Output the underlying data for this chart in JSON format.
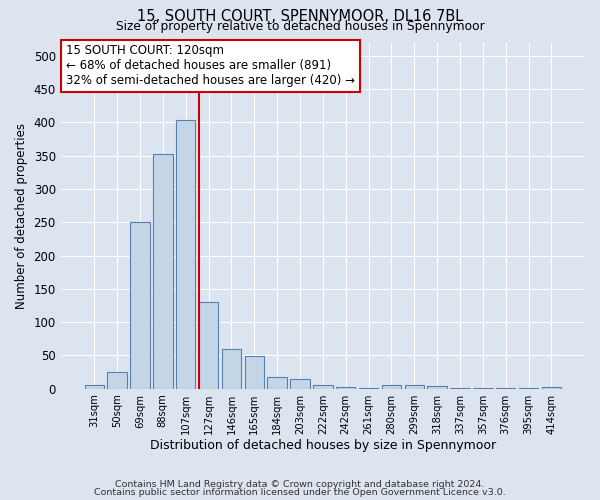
{
  "title": "15, SOUTH COURT, SPENNYMOOR, DL16 7BL",
  "subtitle": "Size of property relative to detached houses in Spennymoor",
  "xlabel": "Distribution of detached houses by size in Spennymoor",
  "ylabel": "Number of detached properties",
  "categories": [
    "31sqm",
    "50sqm",
    "69sqm",
    "88sqm",
    "107sqm",
    "127sqm",
    "146sqm",
    "165sqm",
    "184sqm",
    "203sqm",
    "222sqm",
    "242sqm",
    "261sqm",
    "280sqm",
    "299sqm",
    "318sqm",
    "337sqm",
    "357sqm",
    "376sqm",
    "395sqm",
    "414sqm"
  ],
  "values": [
    5,
    25,
    250,
    353,
    403,
    130,
    60,
    49,
    18,
    15,
    5,
    2,
    1,
    6,
    5,
    4,
    1,
    1,
    1,
    1,
    3
  ],
  "bar_color": "#c5d5e8",
  "bar_edge_color": "#5580b0",
  "vline_x_idx": 5,
  "vline_color": "#cc0000",
  "annotation_text": "15 SOUTH COURT: 120sqm\n← 68% of detached houses are smaller (891)\n32% of semi-detached houses are larger (420) →",
  "annotation_box_color": "#ffffff",
  "annotation_box_edge": "#cc0000",
  "bg_color": "#dce4f0",
  "plot_bg_color": "#dce4f0",
  "footer1": "Contains HM Land Registry data © Crown copyright and database right 2024.",
  "footer2": "Contains public sector information licensed under the Open Government Licence v3.0.",
  "ylim": [
    0,
    520
  ],
  "yticks": [
    0,
    50,
    100,
    150,
    200,
    250,
    300,
    350,
    400,
    450,
    500
  ]
}
